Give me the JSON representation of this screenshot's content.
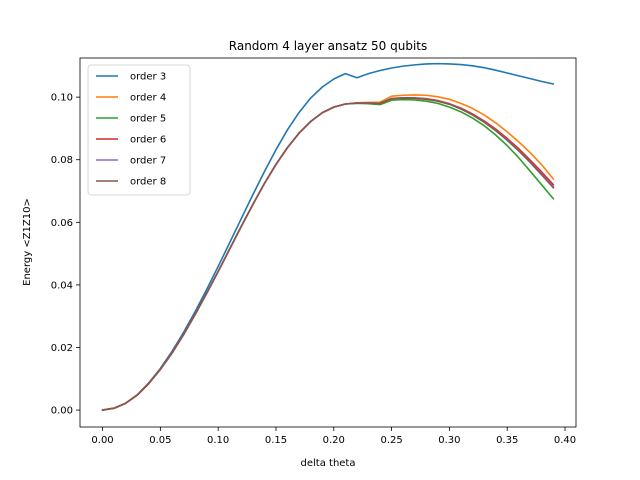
{
  "chart_data": {
    "type": "line",
    "title": "Random 4 layer ansatz 50 qubits",
    "xlabel": "delta theta",
    "ylabel": "Energy <Z1Z10>",
    "xlim": [
      -0.0195,
      0.4095
    ],
    "ylim": [
      -0.0054,
      0.1125
    ],
    "xticks": [
      0.0,
      0.05,
      0.1,
      0.15,
      0.2,
      0.25,
      0.3,
      0.35,
      0.4
    ],
    "xtick_labels": [
      "0.00",
      "0.05",
      "0.10",
      "0.15",
      "0.20",
      "0.25",
      "0.30",
      "0.35",
      "0.40"
    ],
    "yticks": [
      0.0,
      0.02,
      0.04,
      0.06,
      0.08,
      0.1
    ],
    "ytick_labels": [
      "0.00",
      "0.02",
      "0.04",
      "0.06",
      "0.08",
      "0.10"
    ],
    "grid": false,
    "legend_position": "top-left",
    "series": [
      {
        "name": "order 3",
        "color": "#1f77b4",
        "x": [
          0.0,
          0.01,
          0.02,
          0.03,
          0.04,
          0.05,
          0.06,
          0.07,
          0.08,
          0.09,
          0.1,
          0.11,
          0.12,
          0.13,
          0.14,
          0.15,
          0.16,
          0.17,
          0.18,
          0.19,
          0.2,
          0.21,
          0.22,
          0.23,
          0.24,
          0.25,
          0.26,
          0.27,
          0.28,
          0.29,
          0.3,
          0.31,
          0.32,
          0.33,
          0.34,
          0.35,
          0.36,
          0.37,
          0.38,
          0.39
        ],
        "y": [
          0.0,
          0.0006,
          0.0022,
          0.0049,
          0.0087,
          0.0133,
          0.0187,
          0.0248,
          0.0314,
          0.0385,
          0.0459,
          0.0535,
          0.0612,
          0.0688,
          0.0762,
          0.0832,
          0.0896,
          0.0951,
          0.0997,
          0.1032,
          0.1058,
          0.1075,
          0.1062,
          0.1075,
          0.1085,
          0.1093,
          0.1099,
          0.1103,
          0.1106,
          0.1107,
          0.1106,
          0.1104,
          0.11,
          0.1094,
          0.1086,
          0.1077,
          0.1068,
          0.1059,
          0.105,
          0.1042
        ]
      },
      {
        "name": "order 4",
        "color": "#ff7f0e",
        "x": [
          0.0,
          0.01,
          0.02,
          0.03,
          0.04,
          0.05,
          0.06,
          0.07,
          0.08,
          0.09,
          0.1,
          0.11,
          0.12,
          0.13,
          0.14,
          0.15,
          0.16,
          0.17,
          0.18,
          0.19,
          0.2,
          0.21,
          0.22,
          0.23,
          0.24,
          0.25,
          0.26,
          0.27,
          0.28,
          0.29,
          0.3,
          0.31,
          0.32,
          0.33,
          0.34,
          0.35,
          0.36,
          0.37,
          0.38,
          0.39
        ],
        "y": [
          0.0,
          0.0006,
          0.0022,
          0.0048,
          0.0085,
          0.013,
          0.0182,
          0.0241,
          0.0305,
          0.0373,
          0.0443,
          0.0515,
          0.0587,
          0.0657,
          0.0724,
          0.0785,
          0.0839,
          0.0885,
          0.0922,
          0.095,
          0.0968,
          0.0978,
          0.0982,
          0.0983,
          0.0984,
          0.1003,
          0.1006,
          0.1007,
          0.1006,
          0.1001,
          0.0993,
          0.098,
          0.0964,
          0.0943,
          0.0918,
          0.0889,
          0.0857,
          0.0822,
          0.0783,
          0.0738
        ]
      },
      {
        "name": "order 5",
        "color": "#2ca02c",
        "x": [
          0.0,
          0.01,
          0.02,
          0.03,
          0.04,
          0.05,
          0.06,
          0.07,
          0.08,
          0.09,
          0.1,
          0.11,
          0.12,
          0.13,
          0.14,
          0.15,
          0.16,
          0.17,
          0.18,
          0.19,
          0.2,
          0.21,
          0.22,
          0.23,
          0.24,
          0.25,
          0.26,
          0.27,
          0.28,
          0.29,
          0.3,
          0.31,
          0.32,
          0.33,
          0.34,
          0.35,
          0.36,
          0.37,
          0.38,
          0.39
        ],
        "y": [
          0.0,
          0.0006,
          0.0022,
          0.0048,
          0.0085,
          0.013,
          0.0182,
          0.0241,
          0.0305,
          0.0373,
          0.0443,
          0.0515,
          0.0587,
          0.0657,
          0.0724,
          0.0785,
          0.0839,
          0.0885,
          0.0922,
          0.095,
          0.0968,
          0.0978,
          0.098,
          0.0979,
          0.0976,
          0.099,
          0.0992,
          0.0991,
          0.0987,
          0.098,
          0.0968,
          0.0953,
          0.0933,
          0.0909,
          0.0879,
          0.0845,
          0.0806,
          0.0763,
          0.0719,
          0.0675
        ]
      },
      {
        "name": "order 6",
        "color": "#d62728",
        "x": [
          0.0,
          0.01,
          0.02,
          0.03,
          0.04,
          0.05,
          0.06,
          0.07,
          0.08,
          0.09,
          0.1,
          0.11,
          0.12,
          0.13,
          0.14,
          0.15,
          0.16,
          0.17,
          0.18,
          0.19,
          0.2,
          0.21,
          0.22,
          0.23,
          0.24,
          0.25,
          0.26,
          0.27,
          0.28,
          0.29,
          0.3,
          0.31,
          0.32,
          0.33,
          0.34,
          0.35,
          0.36,
          0.37,
          0.38,
          0.39
        ],
        "y": [
          0.0,
          0.0006,
          0.0022,
          0.0048,
          0.0085,
          0.013,
          0.0182,
          0.0241,
          0.0305,
          0.0373,
          0.0443,
          0.0515,
          0.0587,
          0.0657,
          0.0724,
          0.0785,
          0.0839,
          0.0885,
          0.0922,
          0.095,
          0.0968,
          0.0978,
          0.0981,
          0.0981,
          0.098,
          0.0996,
          0.0998,
          0.0998,
          0.0995,
          0.0989,
          0.0979,
          0.0965,
          0.0946,
          0.0924,
          0.0898,
          0.0868,
          0.0835,
          0.0798,
          0.076,
          0.072
        ]
      },
      {
        "name": "order 7",
        "color": "#9467bd",
        "x": [
          0.0,
          0.01,
          0.02,
          0.03,
          0.04,
          0.05,
          0.06,
          0.07,
          0.08,
          0.09,
          0.1,
          0.11,
          0.12,
          0.13,
          0.14,
          0.15,
          0.16,
          0.17,
          0.18,
          0.19,
          0.2,
          0.21,
          0.22,
          0.23,
          0.24,
          0.25,
          0.26,
          0.27,
          0.28,
          0.29,
          0.3,
          0.31,
          0.32,
          0.33,
          0.34,
          0.35,
          0.36,
          0.37,
          0.38,
          0.39
        ],
        "y": [
          0.0,
          0.0006,
          0.0022,
          0.0048,
          0.0085,
          0.013,
          0.0182,
          0.0241,
          0.0305,
          0.0373,
          0.0443,
          0.0515,
          0.0587,
          0.0657,
          0.0724,
          0.0785,
          0.0839,
          0.0885,
          0.0922,
          0.095,
          0.0968,
          0.0978,
          0.0981,
          0.0981,
          0.098,
          0.0995,
          0.0997,
          0.0997,
          0.0994,
          0.0988,
          0.0978,
          0.0963,
          0.0944,
          0.0921,
          0.0895,
          0.0864,
          0.083,
          0.0793,
          0.0754,
          0.0714
        ]
      },
      {
        "name": "order 8",
        "color": "#8c564b",
        "x": [
          0.0,
          0.01,
          0.02,
          0.03,
          0.04,
          0.05,
          0.06,
          0.07,
          0.08,
          0.09,
          0.1,
          0.11,
          0.12,
          0.13,
          0.14,
          0.15,
          0.16,
          0.17,
          0.18,
          0.19,
          0.2,
          0.21,
          0.22,
          0.23,
          0.24,
          0.25,
          0.26,
          0.27,
          0.28,
          0.29,
          0.3,
          0.31,
          0.32,
          0.33,
          0.34,
          0.35,
          0.36,
          0.37,
          0.38,
          0.39
        ],
        "y": [
          0.0,
          0.0006,
          0.0022,
          0.0048,
          0.0085,
          0.013,
          0.0182,
          0.0241,
          0.0305,
          0.0373,
          0.0443,
          0.0515,
          0.0587,
          0.0657,
          0.0724,
          0.0785,
          0.0839,
          0.0885,
          0.0922,
          0.095,
          0.0968,
          0.0978,
          0.0981,
          0.0981,
          0.098,
          0.0995,
          0.0997,
          0.0996,
          0.0993,
          0.0987,
          0.0977,
          0.0962,
          0.0943,
          0.092,
          0.0893,
          0.0862,
          0.0828,
          0.0791,
          0.0751,
          0.071
        ]
      }
    ]
  }
}
